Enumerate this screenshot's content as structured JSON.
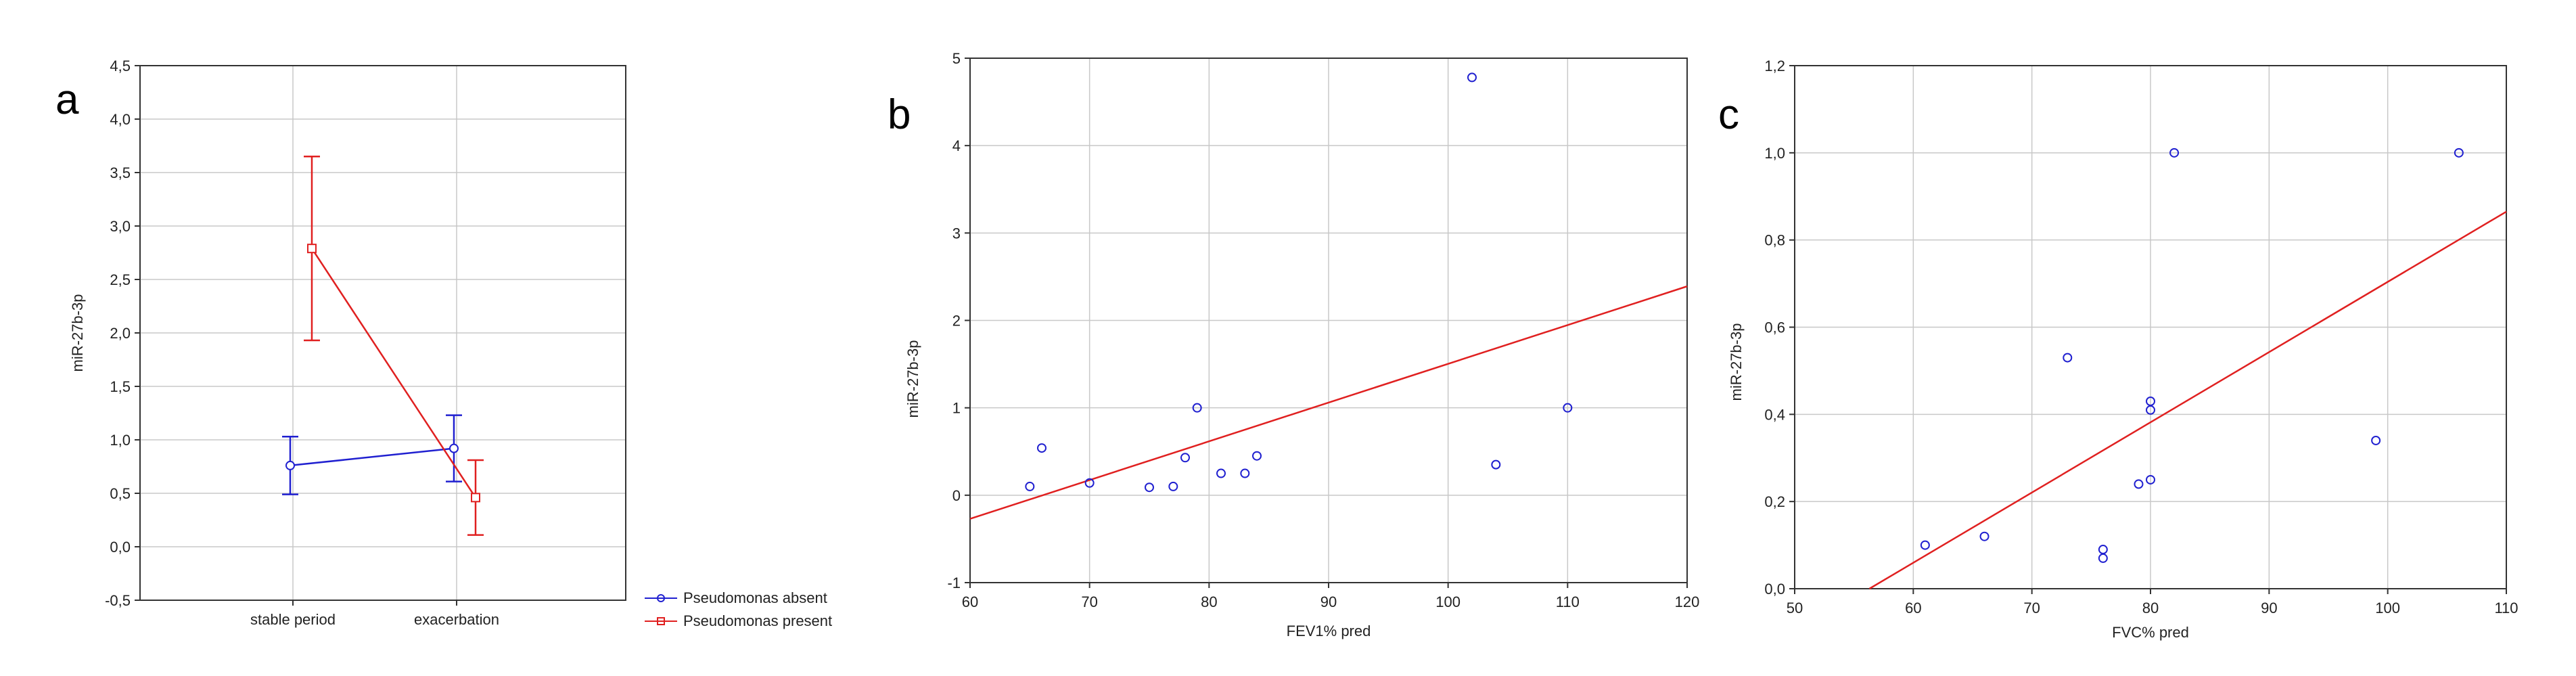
{
  "panels": [
    {
      "letter": "a"
    },
    {
      "letter": "b"
    },
    {
      "letter": "c"
    }
  ],
  "chart_data": [
    {
      "type": "line",
      "panel": "a",
      "xlabel": "",
      "ylabel": "miR-27b-3p",
      "categories": [
        "stable period",
        "exacerbation"
      ],
      "ylim": [
        -0.5,
        4.5
      ],
      "yticks": [
        "-0,5",
        "0,0",
        "0,5",
        "1,0",
        "1,5",
        "2,0",
        "2,5",
        "3,0",
        "3,5",
        "4,0",
        "4,5"
      ],
      "grid": true,
      "legend_position": "bottom-right outside",
      "series": [
        {
          "name": "Pseudomonas absent",
          "color": "#2020d0",
          "marker": "circle",
          "values": [
            0.76,
            0.92
          ],
          "err_low": [
            0.49,
            0.61
          ],
          "err_high": [
            1.03,
            1.23
          ]
        },
        {
          "name": "Pseudomonas present",
          "color": "#e02020",
          "marker": "square",
          "values": [
            2.79,
            0.46
          ],
          "err_low": [
            1.93,
            0.11
          ],
          "err_high": [
            3.65,
            0.81
          ]
        }
      ]
    },
    {
      "type": "scatter",
      "panel": "b",
      "xlabel": "FEV1% pred",
      "ylabel": "miR-27b-3p",
      "xlim": [
        60,
        120
      ],
      "ylim": [
        -1,
        5
      ],
      "xticks": [
        "60",
        "70",
        "80",
        "90",
        "100",
        "110",
        "120"
      ],
      "yticks": [
        "-1",
        "0",
        "1",
        "2",
        "3",
        "4",
        "5"
      ],
      "grid": true,
      "point_color": "#2020d0",
      "fit_color": "#e02020",
      "points": [
        {
          "x": 65,
          "y": 0.1
        },
        {
          "x": 66,
          "y": 0.54
        },
        {
          "x": 70,
          "y": 0.14
        },
        {
          "x": 75,
          "y": 0.09
        },
        {
          "x": 77,
          "y": 0.1
        },
        {
          "x": 78,
          "y": 0.43
        },
        {
          "x": 79,
          "y": 1.0
        },
        {
          "x": 81,
          "y": 0.25
        },
        {
          "x": 83,
          "y": 0.25
        },
        {
          "x": 84,
          "y": 0.45
        },
        {
          "x": 102,
          "y": 4.78
        },
        {
          "x": 104,
          "y": 0.35
        },
        {
          "x": 110,
          "y": 1.0
        }
      ],
      "fit_line": {
        "x": [
          60,
          120
        ],
        "y": [
          -0.27,
          2.39
        ]
      }
    },
    {
      "type": "scatter",
      "panel": "c",
      "xlabel": "FVC% pred",
      "ylabel": "miR-27b-3p",
      "xlim": [
        50,
        110
      ],
      "ylim": [
        0,
        1.2
      ],
      "xticks": [
        "50",
        "60",
        "70",
        "80",
        "90",
        "100",
        "110"
      ],
      "yticks": [
        "0,0",
        "0,2",
        "0,4",
        "0,6",
        "0,8",
        "1,0",
        "1,2"
      ],
      "grid": true,
      "point_color": "#2020d0",
      "fit_color": "#e02020",
      "points": [
        {
          "x": 61,
          "y": 0.1
        },
        {
          "x": 66,
          "y": 0.12
        },
        {
          "x": 73,
          "y": 0.53
        },
        {
          "x": 76,
          "y": 0.09
        },
        {
          "x": 76,
          "y": 0.07
        },
        {
          "x": 79,
          "y": 0.24
        },
        {
          "x": 80,
          "y": 0.25
        },
        {
          "x": 80,
          "y": 0.41
        },
        {
          "x": 80,
          "y": 0.43
        },
        {
          "x": 82,
          "y": 1.0
        },
        {
          "x": 99,
          "y": 0.34
        },
        {
          "x": 106,
          "y": 1.0
        }
      ],
      "fit_line": {
        "x": [
          56.3,
          110
        ],
        "y": [
          0,
          0.865
        ]
      }
    }
  ]
}
